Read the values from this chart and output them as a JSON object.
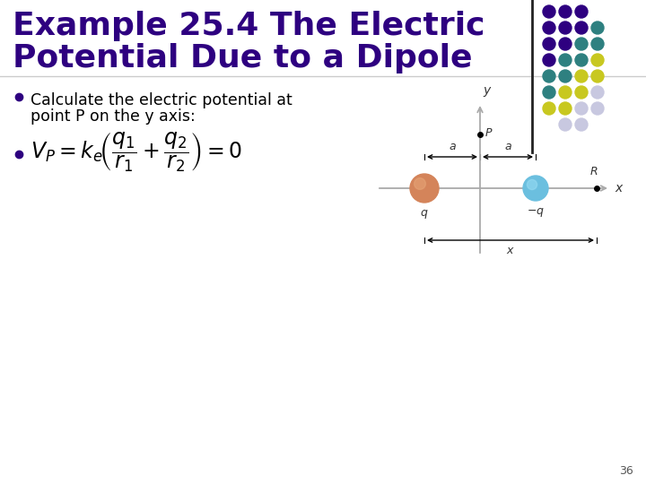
{
  "title_line1": "Example 25.4 The Electric",
  "title_line2": "Potential Due to a Dipole",
  "title_color": "#2E0080",
  "bullet1_text1": "Calculate the electric potential at",
  "bullet1_text2": "point P on the y axis:",
  "page_number": "36",
  "background_color": "#ffffff",
  "dot_grid": [
    [
      0,
      0,
      "#2E0080"
    ],
    [
      1,
      0,
      "#2E0080"
    ],
    [
      2,
      0,
      "#2E0080"
    ],
    [
      0,
      1,
      "#2E0080"
    ],
    [
      1,
      1,
      "#2E0080"
    ],
    [
      2,
      1,
      "#2E0080"
    ],
    [
      3,
      1,
      "#2E8080"
    ],
    [
      0,
      2,
      "#2E0080"
    ],
    [
      1,
      2,
      "#2E0080"
    ],
    [
      2,
      2,
      "#2E8080"
    ],
    [
      3,
      2,
      "#2E8080"
    ],
    [
      0,
      3,
      "#2E0080"
    ],
    [
      1,
      3,
      "#2E8080"
    ],
    [
      2,
      3,
      "#2E8080"
    ],
    [
      3,
      3,
      "#c8c820"
    ],
    [
      0,
      4,
      "#2E8080"
    ],
    [
      1,
      4,
      "#2E8080"
    ],
    [
      2,
      4,
      "#c8c820"
    ],
    [
      3,
      4,
      "#c8c820"
    ],
    [
      0,
      5,
      "#2E8080"
    ],
    [
      1,
      5,
      "#c8c820"
    ],
    [
      2,
      5,
      "#c8c820"
    ],
    [
      3,
      5,
      "#c8c8e0"
    ],
    [
      0,
      6,
      "#c8c820"
    ],
    [
      1,
      6,
      "#c8c820"
    ],
    [
      2,
      6,
      "#c8c8e0"
    ],
    [
      3,
      6,
      "#c8c8e0"
    ],
    [
      1,
      7,
      "#c8c8e0"
    ],
    [
      2,
      7,
      "#c8c8e0"
    ]
  ],
  "diagram_ax_color": "#aaaaaa",
  "charge_pos_color": "#D4845A",
  "charge_neg_color": "#6BBFDF",
  "sep_line_color": "#222222"
}
